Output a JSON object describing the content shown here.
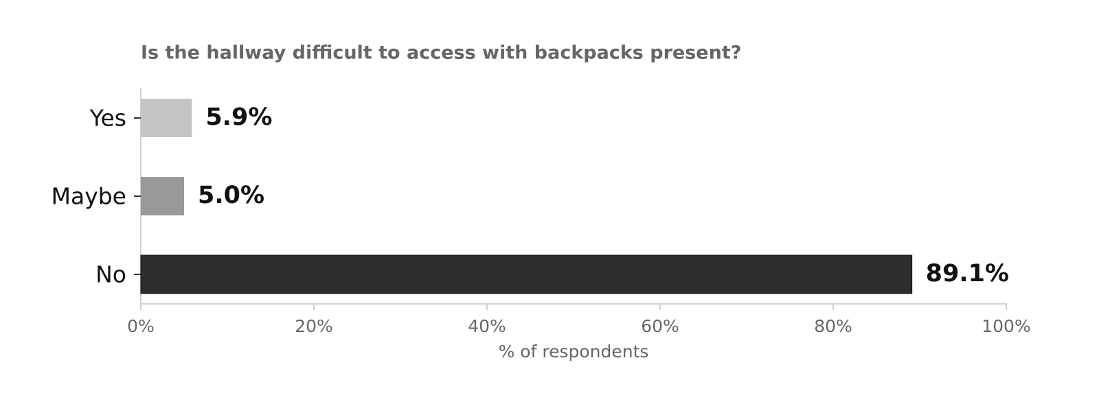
{
  "chart_data": {
    "type": "barh",
    "title": "Is the hallway difficult to access with backpacks present?",
    "categories": [
      "Yes",
      "Maybe",
      "No"
    ],
    "values": [
      5.9,
      5.0,
      89.1
    ],
    "value_labels": [
      "5.9%",
      "5.0%",
      "89.1%"
    ],
    "colors": [
      "#c4c4c4",
      "#999999",
      "#2d2d2d"
    ],
    "xlabel": "% of respondents",
    "xlim": [
      0,
      100
    ],
    "xticks": [
      {
        "value": 0,
        "label": "0%"
      },
      {
        "value": 20,
        "label": "20%"
      },
      {
        "value": 40,
        "label": "40%"
      },
      {
        "value": 60,
        "label": "60%"
      },
      {
        "value": 80,
        "label": "80%"
      },
      {
        "value": 100,
        "label": "100%"
      }
    ],
    "grid": false
  }
}
